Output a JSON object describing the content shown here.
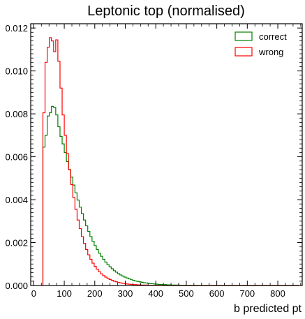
{
  "chart_data": {
    "type": "histogram",
    "title": "Leptonic top (normalised)",
    "xlabel": "b predicted pt",
    "ylabel": "",
    "xlim": [
      -10,
      880
    ],
    "ylim": [
      0,
      0.0122
    ],
    "x_ticks": [
      0,
      100,
      200,
      300,
      400,
      500,
      600,
      700,
      800
    ],
    "x_tick_labels": [
      "0",
      "100",
      "200",
      "300",
      "400",
      "500",
      "600",
      "700",
      "800"
    ],
    "y_ticks": [
      0,
      0.002,
      0.004,
      0.006,
      0.008,
      0.01,
      0.012
    ],
    "y_tick_labels": [
      "0.000",
      "0.002",
      "0.004",
      "0.006",
      "0.008",
      "0.010",
      "0.012"
    ],
    "legend_position": "top-right",
    "bin_start": 30,
    "bin_width": 7,
    "series": [
      {
        "name": "correct",
        "color": "#008000",
        "values": [
          0.00645,
          0.007,
          0.0079,
          0.00805,
          0.00835,
          0.0083,
          0.00795,
          0.0074,
          0.00695,
          0.0066,
          0.0062,
          0.00578,
          0.0054,
          0.00505,
          0.00468,
          0.00432,
          0.00398,
          0.00365,
          0.00335,
          0.00305,
          0.00278,
          0.00252,
          0.00228,
          0.00206,
          0.00186,
          0.00168,
          0.00151,
          0.00136,
          0.00122,
          0.00109,
          0.00097,
          0.00087,
          0.00078,
          0.00069,
          0.00062,
          0.00055,
          0.00049,
          0.00044,
          0.00039,
          0.00035,
          0.00031,
          0.00027,
          0.00024,
          0.00021,
          0.00019,
          0.00017,
          0.00015,
          0.00013,
          0.00012,
          0.0001,
          9e-05,
          8e-05,
          7e-05,
          6e-05,
          5e-05,
          5e-05,
          4e-05,
          4e-05,
          3e-05,
          3e-05,
          2e-05,
          2e-05,
          2e-05,
          2e-05,
          1e-05,
          1e-05,
          1e-05,
          1e-05,
          1e-05,
          1e-05,
          1e-05,
          1e-05,
          0.0,
          0.0,
          0.0,
          0.0,
          0.0,
          0.0,
          0.0,
          0.0,
          0.0,
          0.0,
          0.0,
          0.0,
          0.0,
          0.0,
          0.0,
          0.0,
          0.0,
          0.0,
          0.0,
          0.0,
          0.0,
          0.0,
          0.0,
          0.0,
          0.0,
          0.0,
          0.0,
          0.0,
          0.0,
          0.0,
          0.0,
          0.0,
          0.0,
          0.0,
          0.0,
          0.0,
          0.0,
          0.0,
          0.0,
          0.0,
          0.0,
          0.0,
          0.0,
          0.0,
          0.0,
          0.0,
          0.0,
          0.0
        ]
      },
      {
        "name": "wrong",
        "color": "#ff0000",
        "values": [
          0.00805,
          0.0104,
          0.0111,
          0.01155,
          0.0114,
          0.0109,
          0.01145,
          0.01045,
          0.0092,
          0.00795,
          0.007,
          0.00615,
          0.0054,
          0.0047,
          0.0041,
          0.00355,
          0.00305,
          0.00265,
          0.00228,
          0.00196,
          0.00168,
          0.00143,
          0.00122,
          0.00104,
          0.00089,
          0.00076,
          0.00064,
          0.00054,
          0.00046,
          0.00039,
          0.00033,
          0.00028,
          0.00024,
          0.0002,
          0.00017,
          0.00014,
          0.00012,
          0.0001,
          8e-05,
          7e-05,
          6e-05,
          5e-05,
          4e-05,
          4e-05,
          3e-05,
          3e-05,
          2e-05,
          2e-05,
          2e-05,
          1e-05,
          1e-05,
          1e-05,
          1e-05,
          1e-05,
          1e-05,
          0.0,
          0.0,
          0.0,
          0.0,
          0.0,
          0.0,
          0.0,
          0.0,
          0.0,
          0.0,
          0.0,
          0.0,
          0.0,
          0.0,
          0.0,
          0.0,
          0.0,
          0.0,
          0.0,
          0.0,
          0.0,
          0.0,
          0.0,
          0.0,
          0.0,
          0.0,
          0.0,
          0.0,
          0.0,
          0.0,
          0.0,
          0.0,
          0.0,
          0.0,
          0.0,
          0.0,
          0.0,
          0.0,
          0.0,
          0.0,
          0.0,
          0.0,
          0.0,
          0.0,
          0.0,
          0.0,
          0.0,
          0.0,
          0.0,
          0.0,
          0.0,
          0.0,
          0.0,
          0.0,
          0.0,
          0.0,
          0.0,
          0.0,
          0.0,
          0.0,
          0.0,
          0.0,
          0.0,
          0.0,
          0.0
        ]
      }
    ]
  }
}
